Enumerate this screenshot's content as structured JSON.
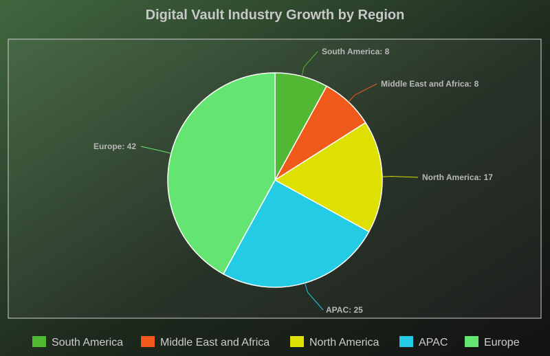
{
  "chart_data": {
    "type": "pie",
    "title": "Digital Vault Industry Growth by Region",
    "categories": [
      "South America",
      "Middle East and Africa",
      "North America",
      "APAC",
      "Europe"
    ],
    "values": [
      8,
      8,
      17,
      25,
      42
    ],
    "colors": [
      "#51b833",
      "#ef5a1a",
      "#dde000",
      "#24cbe5",
      "#64e572"
    ],
    "labels": [
      "South America: 8",
      "Middle East and Africa: 8",
      "North America: 17",
      "APAC: 25",
      "Europe: 42"
    ],
    "legend": "bottom",
    "background": [
      "#3f6640",
      "#0f0f0f"
    ]
  }
}
